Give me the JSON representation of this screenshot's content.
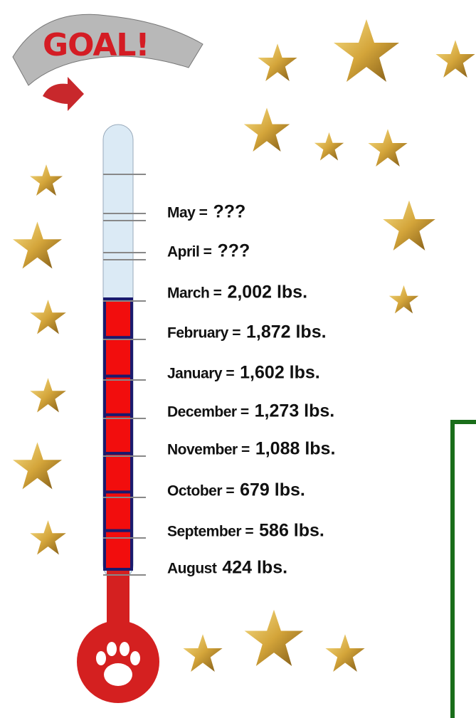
{
  "banner": {
    "title": "GOAL!"
  },
  "rows": [
    {
      "label": "May =",
      "value": "???"
    },
    {
      "label": "April =",
      "value": "???"
    },
    {
      "label": "March =",
      "value": "2,002 lbs."
    },
    {
      "label": "February =",
      "value": "1,872 lbs."
    },
    {
      "label": "January =",
      "value": "1,602 lbs."
    },
    {
      "label": "December =",
      "value": "1,273 lbs."
    },
    {
      "label": "November =",
      "value": "1,088 lbs."
    },
    {
      "label": "October =",
      "value": "679 lbs."
    },
    {
      "label": "September =",
      "value": "586 lbs."
    },
    {
      "label": "August",
      "value": "424 lbs."
    }
  ]
}
